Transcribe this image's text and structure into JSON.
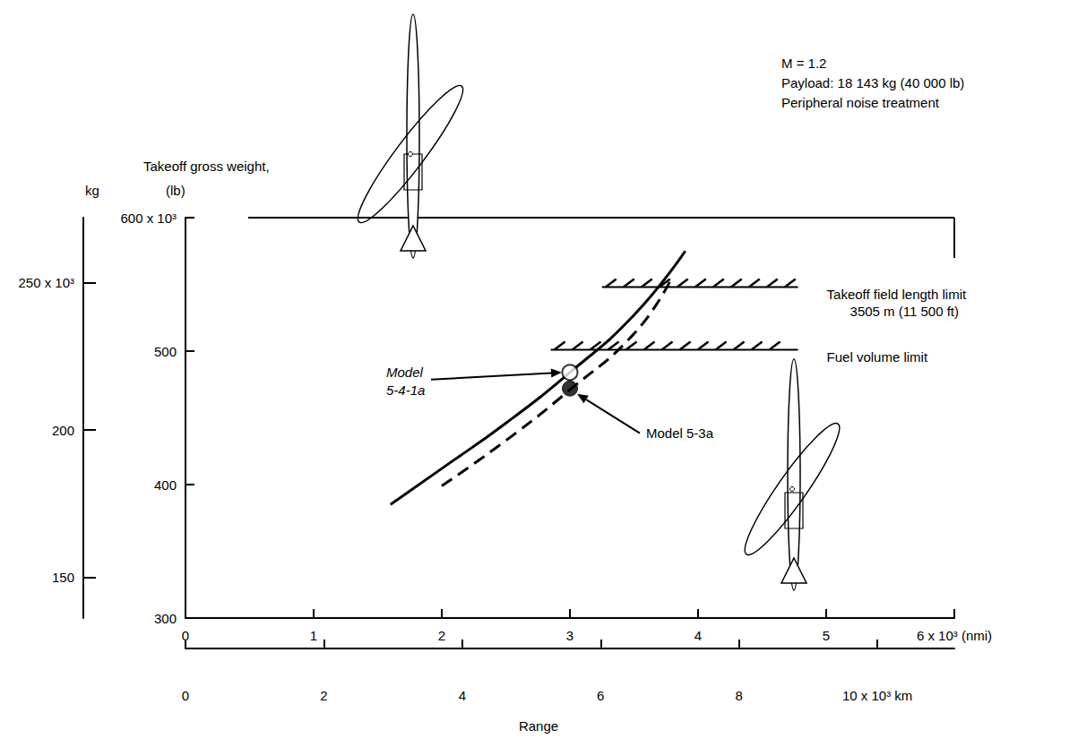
{
  "chart_data": {
    "type": "line",
    "annotations": [
      "M = 1.2",
      "Payload: 18 143 kg (40 000 lb)",
      "Peripheral noise treatment"
    ],
    "y_label": "Takeoff gross weight,",
    "y_unit": "(lb)",
    "y2_unit": "kg",
    "x_label": "Range",
    "xlim": [
      0,
      6
    ],
    "xticks": [
      0,
      1,
      2,
      3,
      4,
      5,
      {
        "value": 6,
        "label": "6 x 10³ (nmi)"
      }
    ],
    "ylim": [
      300,
      600
    ],
    "yticks": [
      300,
      400,
      500,
      {
        "value": 600,
        "label": "600 x 10³"
      }
    ],
    "y2lim": [
      136.08,
      272.16
    ],
    "y2ticks": [
      150,
      200,
      {
        "value": 250,
        "label": "250 x 10³"
      }
    ],
    "x2lim": [
      0,
      11.112
    ],
    "x2ticks": [
      0,
      2,
      4,
      6,
      8,
      {
        "value": 10,
        "label": "10 x 10³ km"
      }
    ],
    "series": [
      {
        "line_style": "solid",
        "color": "#000000",
        "x": [
          1.6,
          2.0,
          2.5,
          3.0,
          3.5,
          3.9
        ],
        "values": [
          385,
          412,
          446,
          484,
          527,
          575
        ]
      },
      {
        "line_style": "dashed",
        "color": "#000000",
        "x": [
          2.0,
          2.5,
          3.0,
          3.5,
          3.78
        ],
        "values": [
          399,
          433,
          471,
          513,
          552
        ]
      }
    ],
    "points": [
      {
        "label": "Model 5-4-1a",
        "x": 3.0,
        "y": 484,
        "marker": "open circle"
      },
      {
        "label": "Model 5-3a",
        "x": 3.0,
        "y": 472,
        "marker": "filled circle"
      }
    ],
    "limits": [
      {
        "label": "Takeoff field length limit",
        "sublabel": "3505 m (11 500 ft)",
        "x": [
          3.25,
          4.78
        ],
        "y": 548
      },
      {
        "label": "Fuel volume limit",
        "x": [
          2.85,
          4.78
        ],
        "y": 501
      }
    ],
    "grid": false
  }
}
